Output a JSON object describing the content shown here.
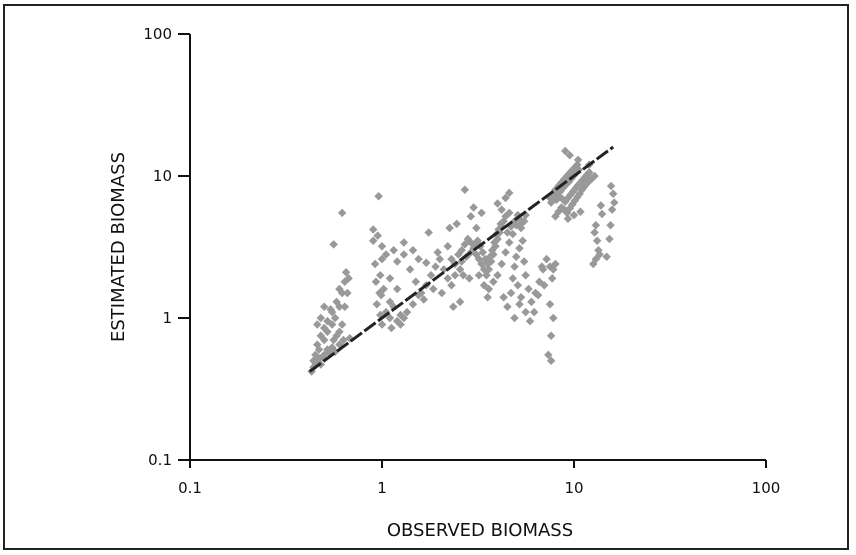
{
  "chart_data": {
    "type": "scatter",
    "title": "",
    "xlabel": "OBSERVED BIOMASS",
    "ylabel": "ESTIMATED BIOMASS",
    "x_scale": "log",
    "y_scale": "log",
    "xlim": [
      0.1,
      100
    ],
    "ylim": [
      0.1,
      100
    ],
    "x_ticks": [
      0.1,
      1,
      10,
      100
    ],
    "x_tick_labels": [
      "0.1",
      "1",
      "10",
      "100"
    ],
    "y_ticks": [
      0.1,
      1,
      10,
      100
    ],
    "y_tick_labels": [
      "0.1",
      "1",
      "10",
      "100"
    ],
    "grid": false,
    "legend": "none",
    "point_color": "#999999",
    "line_color": "#222222",
    "fit_line": {
      "x": [
        0.42,
        16
      ],
      "y": [
        0.42,
        16
      ]
    },
    "series": [
      {
        "points": [
          [
            0.43,
            0.42
          ],
          [
            0.44,
            0.45
          ],
          [
            0.45,
            0.48
          ],
          [
            0.46,
            0.5
          ],
          [
            0.47,
            0.52
          ],
          [
            0.48,
            0.47
          ],
          [
            0.5,
            0.55
          ],
          [
            0.52,
            0.6
          ],
          [
            0.55,
            0.62
          ],
          [
            0.57,
            0.58
          ],
          [
            0.6,
            0.65
          ],
          [
            0.45,
            0.55
          ],
          [
            0.47,
            0.6
          ],
          [
            0.5,
            0.7
          ],
          [
            0.52,
            0.8
          ],
          [
            0.55,
            0.9
          ],
          [
            0.57,
            1.0
          ],
          [
            0.6,
            1.2
          ],
          [
            0.62,
            1.5
          ],
          [
            0.64,
            1.8
          ],
          [
            0.65,
            2.1
          ],
          [
            0.6,
            1.6
          ],
          [
            0.58,
            1.3
          ],
          [
            0.55,
            1.1
          ],
          [
            0.52,
            0.95
          ],
          [
            0.5,
            0.85
          ],
          [
            0.48,
            0.75
          ],
          [
            0.46,
            0.65
          ],
          [
            0.62,
            0.9
          ],
          [
            0.64,
            1.2
          ],
          [
            0.66,
            1.5
          ],
          [
            0.67,
            1.9
          ],
          [
            0.6,
            0.8
          ],
          [
            0.44,
            0.5
          ],
          [
            0.49,
            0.53
          ],
          [
            0.53,
            0.57
          ],
          [
            0.56,
            0.7
          ],
          [
            0.58,
            0.75
          ],
          [
            0.63,
            0.7
          ],
          [
            0.68,
            0.72
          ],
          [
            0.54,
            1.15
          ],
          [
            0.5,
            1.2
          ],
          [
            0.56,
            3.3
          ],
          [
            0.62,
            5.5
          ],
          [
            0.48,
            1.0
          ],
          [
            0.46,
            0.9
          ],
          [
            0.9,
            3.5
          ],
          [
            0.95,
            3.8
          ],
          [
            1.0,
            3.2
          ],
          [
            1.05,
            2.8
          ],
          [
            0.92,
            2.4
          ],
          [
            0.98,
            2.0
          ],
          [
            1.02,
            1.6
          ],
          [
            1.1,
            1.9
          ],
          [
            1.2,
            2.5
          ],
          [
            1.3,
            2.8
          ],
          [
            1.15,
            3.0
          ],
          [
            1.0,
            2.6
          ],
          [
            0.93,
            1.8
          ],
          [
            0.97,
            1.5
          ],
          [
            1.1,
            1.3
          ],
          [
            1.2,
            1.6
          ],
          [
            1.4,
            2.2
          ],
          [
            1.5,
            1.8
          ],
          [
            1.6,
            1.5
          ],
          [
            1.7,
            1.7
          ],
          [
            1.8,
            2.0
          ],
          [
            1.9,
            2.3
          ],
          [
            2.0,
            2.6
          ],
          [
            2.1,
            2.2
          ],
          [
            1.85,
            1.6
          ],
          [
            1.65,
            1.35
          ],
          [
            1.25,
            1.05
          ],
          [
            1.15,
            1.2
          ],
          [
            1.3,
            3.4
          ],
          [
            1.45,
            3.0
          ],
          [
            1.55,
            2.6
          ],
          [
            2.2,
            1.9
          ],
          [
            2.3,
            1.7
          ],
          [
            2.4,
            2.0
          ],
          [
            1.05,
            1.1
          ],
          [
            1.1,
            1.0
          ],
          [
            1.2,
            0.95
          ],
          [
            1.3,
            1.0
          ],
          [
            1.35,
            1.1
          ],
          [
            1.0,
            0.9
          ],
          [
            0.98,
            1.05
          ],
          [
            1.12,
            0.85
          ],
          [
            1.25,
            0.9
          ],
          [
            0.9,
            4.2
          ],
          [
            1.75,
            4.0
          ],
          [
            2.25,
            4.3
          ],
          [
            1.95,
            2.9
          ],
          [
            1.7,
            2.45
          ],
          [
            0.96,
            7.2
          ],
          [
            1.55,
            1.45
          ],
          [
            1.45,
            1.25
          ],
          [
            0.94,
            1.25
          ],
          [
            0.99,
            1.45
          ],
          [
            2.5,
            2.8
          ],
          [
            2.6,
            3.0
          ],
          [
            2.7,
            3.3
          ],
          [
            2.8,
            3.6
          ],
          [
            2.9,
            3.4
          ],
          [
            3.0,
            3.1
          ],
          [
            3.1,
            2.8
          ],
          [
            3.2,
            2.6
          ],
          [
            3.3,
            2.4
          ],
          [
            3.4,
            2.2
          ],
          [
            3.5,
            2.0
          ],
          [
            3.6,
            2.2
          ],
          [
            3.7,
            2.5
          ],
          [
            3.8,
            2.8
          ],
          [
            3.9,
            3.2
          ],
          [
            4.0,
            3.6
          ],
          [
            4.1,
            4.0
          ],
          [
            4.2,
            4.4
          ],
          [
            4.3,
            4.8
          ],
          [
            4.4,
            5.2
          ],
          [
            2.6,
            2.5
          ],
          [
            2.75,
            2.7
          ],
          [
            2.9,
            2.9
          ],
          [
            3.05,
            3.3
          ],
          [
            3.15,
            3.5
          ],
          [
            3.25,
            3.2
          ],
          [
            3.35,
            2.9
          ],
          [
            3.45,
            2.6
          ],
          [
            3.55,
            2.4
          ],
          [
            3.65,
            2.7
          ],
          [
            3.75,
            3.0
          ],
          [
            3.85,
            3.4
          ],
          [
            3.95,
            3.9
          ],
          [
            4.05,
            4.2
          ],
          [
            4.15,
            4.6
          ],
          [
            2.4,
            2.4
          ],
          [
            2.3,
            2.6
          ],
          [
            2.55,
            2.2
          ],
          [
            2.65,
            2.0
          ],
          [
            2.85,
            1.9
          ],
          [
            3.2,
            2.0
          ],
          [
            3.4,
            1.7
          ],
          [
            3.6,
            1.6
          ],
          [
            3.8,
            1.8
          ],
          [
            4.0,
            2.0
          ],
          [
            4.2,
            2.4
          ],
          [
            4.4,
            2.9
          ],
          [
            4.6,
            3.4
          ],
          [
            4.8,
            3.9
          ],
          [
            5.0,
            4.5
          ],
          [
            5.2,
            5.0
          ],
          [
            4.5,
            4.0
          ],
          [
            4.7,
            4.4
          ],
          [
            4.9,
            4.8
          ],
          [
            5.1,
            5.3
          ],
          [
            5.3,
            4.6
          ],
          [
            2.7,
            8.0
          ],
          [
            3.0,
            6.0
          ],
          [
            3.3,
            5.5
          ],
          [
            2.9,
            5.2
          ],
          [
            2.45,
            4.6
          ],
          [
            3.1,
            4.3
          ],
          [
            2.2,
            3.2
          ],
          [
            2.05,
            1.5
          ],
          [
            2.55,
            1.3
          ],
          [
            2.35,
            1.2
          ],
          [
            3.55,
            1.4
          ],
          [
            4.8,
            1.9
          ],
          [
            4.9,
            2.3
          ],
          [
            5.0,
            2.7
          ],
          [
            5.2,
            3.1
          ],
          [
            5.4,
            3.5
          ],
          [
            5.5,
            2.5
          ],
          [
            5.6,
            2.0
          ],
          [
            5.8,
            1.6
          ],
          [
            6.0,
            1.3
          ],
          [
            5.3,
            1.4
          ],
          [
            5.1,
            1.7
          ],
          [
            4.7,
            1.5
          ],
          [
            4.5,
            1.2
          ],
          [
            4.3,
            1.4
          ],
          [
            5.6,
            1.1
          ],
          [
            4.9,
            1.0
          ],
          [
            5.2,
            1.25
          ],
          [
            6.3,
            1.5
          ],
          [
            6.6,
            1.8
          ],
          [
            6.9,
            2.2
          ],
          [
            7.2,
            2.6
          ],
          [
            7.5,
            2.3
          ],
          [
            7.7,
            1.9
          ],
          [
            7.0,
            1.7
          ],
          [
            6.5,
            1.45
          ],
          [
            6.2,
            1.1
          ],
          [
            5.9,
            0.95
          ],
          [
            7.5,
            1.25
          ],
          [
            7.8,
            1.0
          ],
          [
            7.6,
            0.75
          ],
          [
            7.35,
            0.55
          ],
          [
            7.6,
            0.5
          ],
          [
            6.8,
            2.3
          ],
          [
            7.8,
            2.2
          ],
          [
            8.0,
            2.4
          ],
          [
            5.5,
            4.8
          ],
          [
            5.3,
            4.3
          ],
          [
            5.6,
            5.3
          ],
          [
            4.6,
            5.5
          ],
          [
            4.2,
            5.8
          ],
          [
            4.0,
            6.4
          ],
          [
            4.4,
            7.0
          ],
          [
            4.6,
            7.6
          ],
          [
            7.5,
            7.0
          ],
          [
            7.8,
            7.5
          ],
          [
            8.0,
            8.0
          ],
          [
            8.3,
            8.5
          ],
          [
            8.6,
            9.0
          ],
          [
            8.9,
            9.5
          ],
          [
            9.2,
            10.0
          ],
          [
            9.5,
            10.5
          ],
          [
            9.8,
            11.0
          ],
          [
            10.1,
            11.5
          ],
          [
            10.4,
            12.0
          ],
          [
            8.2,
            7.2
          ],
          [
            8.5,
            7.8
          ],
          [
            8.8,
            8.3
          ],
          [
            9.1,
            8.7
          ],
          [
            9.4,
            9.1
          ],
          [
            9.7,
            9.6
          ],
          [
            10.0,
            10.1
          ],
          [
            10.3,
            10.6
          ],
          [
            10.6,
            11.1
          ],
          [
            7.6,
            6.5
          ],
          [
            8.1,
            6.8
          ],
          [
            8.4,
            7.1
          ],
          [
            8.7,
            6.9
          ],
          [
            9.0,
            6.6
          ],
          [
            9.3,
            7.0
          ],
          [
            9.6,
            7.4
          ],
          [
            9.9,
            7.8
          ],
          [
            10.2,
            8.2
          ],
          [
            10.5,
            8.6
          ],
          [
            10.8,
            9.0
          ],
          [
            11.1,
            9.4
          ],
          [
            11.4,
            9.8
          ],
          [
            11.7,
            10.2
          ],
          [
            12.0,
            10.6
          ],
          [
            8.0,
            5.2
          ],
          [
            8.3,
            5.6
          ],
          [
            8.6,
            6.0
          ],
          [
            8.9,
            5.8
          ],
          [
            9.2,
            5.5
          ],
          [
            9.5,
            5.9
          ],
          [
            9.8,
            6.3
          ],
          [
            10.1,
            6.7
          ],
          [
            10.4,
            7.1
          ],
          [
            10.7,
            7.5
          ],
          [
            11.0,
            8.0
          ],
          [
            11.3,
            8.4
          ],
          [
            11.6,
            8.8
          ],
          [
            12.0,
            9.2
          ],
          [
            12.4,
            9.6
          ],
          [
            12.8,
            10.0
          ],
          [
            9.0,
            15.0
          ],
          [
            9.5,
            14.0
          ],
          [
            10.5,
            13.0
          ],
          [
            12.0,
            12.0
          ],
          [
            9.3,
            5.0
          ],
          [
            10.0,
            5.3
          ],
          [
            10.8,
            5.6
          ],
          [
            13.0,
            4.5
          ],
          [
            12.8,
            4.0
          ],
          [
            13.2,
            3.5
          ],
          [
            13.4,
            3.0
          ],
          [
            13.6,
            2.8
          ],
          [
            13.0,
            2.6
          ],
          [
            12.6,
            2.4
          ],
          [
            16.0,
            7.5
          ],
          [
            15.6,
            8.5
          ],
          [
            15.8,
            5.8
          ],
          [
            15.5,
            4.5
          ],
          [
            15.3,
            3.6
          ],
          [
            14.8,
            2.7
          ],
          [
            16.2,
            6.5
          ],
          [
            14.0,
            5.4
          ],
          [
            13.8,
            6.2
          ]
        ]
      }
    ]
  }
}
